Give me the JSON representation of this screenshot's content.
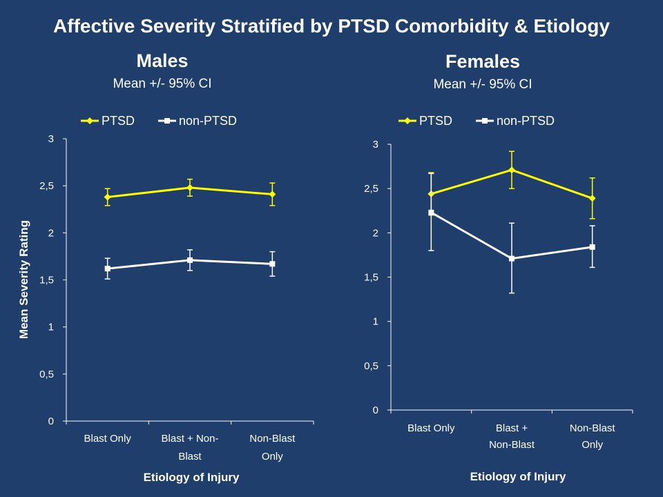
{
  "slide_title": "Affective Severity Stratified by PTSD Comorbidity & Etiology",
  "colors": {
    "background": "#1f3e6b",
    "ptsd": "#ffff00",
    "non_ptsd": "#ffffff"
  },
  "chart_data": [
    {
      "type": "line",
      "title": "Males",
      "subtitle": "Mean +/- 95% CI",
      "xlabel": "Etiology of Injury",
      "ylabel": "Mean Severity Rating",
      "categories": [
        [
          "Blast Only"
        ],
        [
          "Blast + Non-",
          "Blast"
        ],
        [
          "Non-Blast",
          "Only"
        ]
      ],
      "ylim": [
        0,
        3
      ],
      "yticks": [
        "0",
        "0,5",
        "1",
        "1,5",
        "2",
        "2,5",
        "3"
      ],
      "legend_position": "top",
      "series": [
        {
          "name": "PTSD",
          "color": "#ffff00",
          "marker": "diamond",
          "values": [
            2.38,
            2.48,
            2.41
          ],
          "ci_low": [
            2.29,
            2.39,
            2.29
          ],
          "ci_high": [
            2.47,
            2.57,
            2.53
          ]
        },
        {
          "name": "non-PTSD",
          "color": "#ffffff",
          "marker": "square",
          "values": [
            1.62,
            1.71,
            1.67
          ],
          "ci_low": [
            1.51,
            1.6,
            1.54
          ],
          "ci_high": [
            1.73,
            1.82,
            1.8
          ]
        }
      ]
    },
    {
      "type": "line",
      "title": "Females",
      "subtitle": "Mean +/- 95% CI",
      "xlabel": "Etiology of Injury",
      "ylabel": "",
      "categories": [
        [
          "Blast Only"
        ],
        [
          "Blast +",
          "Non-Blast"
        ],
        [
          "Non-Blast",
          "Only"
        ]
      ],
      "ylim": [
        0,
        3
      ],
      "yticks": [
        "0",
        "0,5",
        "1",
        "1,5",
        "2",
        "2,5",
        "3"
      ],
      "legend_position": "top",
      "series": [
        {
          "name": "PTSD",
          "color": "#ffff00",
          "marker": "diamond",
          "values": [
            2.44,
            2.71,
            2.39
          ],
          "ci_low": [
            2.2,
            2.5,
            2.16
          ],
          "ci_high": [
            2.68,
            2.92,
            2.62
          ]
        },
        {
          "name": "non-PTSD",
          "color": "#ffffff",
          "marker": "square",
          "values": [
            2.23,
            1.71,
            1.84
          ],
          "ci_low": [
            1.8,
            1.32,
            1.61
          ],
          "ci_high": [
            2.67,
            2.11,
            2.08
          ]
        }
      ]
    }
  ]
}
